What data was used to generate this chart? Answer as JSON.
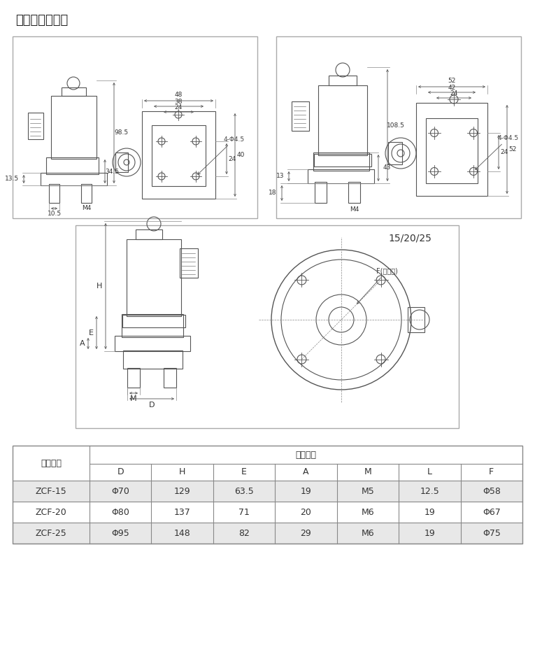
{
  "title": "结构外型尺寸图",
  "bg_color": "#ffffff",
  "table": {
    "header1": "产品型号",
    "header2": "外形尺寸",
    "cols": [
      "D",
      "H",
      "E",
      "A",
      "M",
      "L",
      "F"
    ],
    "rows": [
      [
        "ZCF-15",
        "Φ70",
        "129",
        "63.5",
        "19",
        "M5",
        "12.5",
        "Φ58"
      ],
      [
        "ZCF-20",
        "Φ80",
        "137",
        "71",
        "20",
        "M6",
        "19",
        "Φ67"
      ],
      [
        "ZCF-25",
        "Φ95",
        "148",
        "82",
        "29",
        "M6",
        "19",
        "Φ75"
      ]
    ],
    "shaded_rows": [
      0,
      2
    ],
    "shade_color": "#e8e8e8"
  },
  "label_1520_25": "15/20/25",
  "label_F": "F(中心距)",
  "label_m4": "M4",
  "label_4phi45": "4-Φ4.5"
}
